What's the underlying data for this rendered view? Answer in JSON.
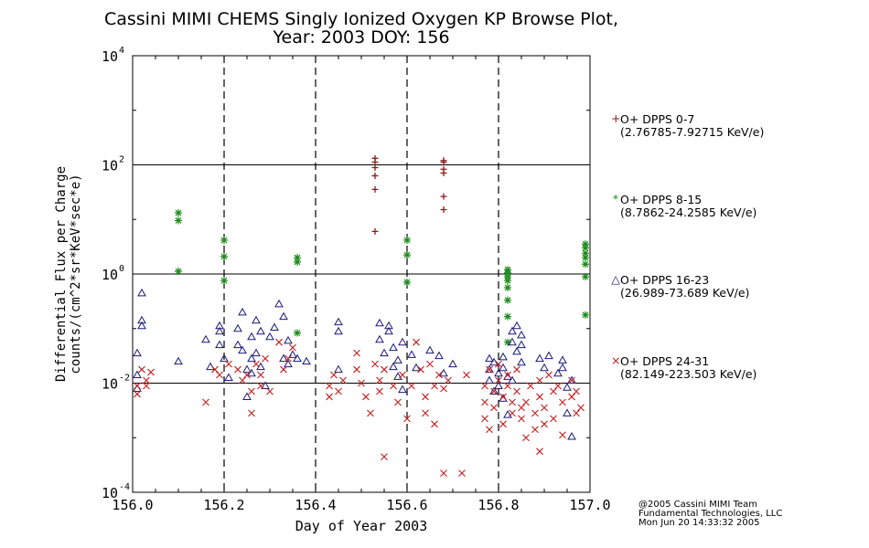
{
  "chart_data": {
    "type": "scatter",
    "title_line1": "Cassini MIMI CHEMS Singly Ionized Oxygen KP Browse Plot,",
    "title_line2": "Year: 2003 DOY: 156",
    "xlabel": "Day of Year 2003",
    "ylabel_line1": "Differential Flux per Charge",
    "ylabel_line2": "counts/(cm^2*sr*KeV*sec*e)",
    "xlim": [
      156.0,
      157.0
    ],
    "ylim_log10": [
      -4,
      4
    ],
    "x_ticks": [
      "156.0",
      "156.2",
      "156.4",
      "156.6",
      "156.8",
      "157.0"
    ],
    "x_tick_values": [
      156.0,
      156.2,
      156.4,
      156.6,
      156.8,
      157.0
    ],
    "y_ticks": [
      {
        "base": "10",
        "exp": "-4",
        "value": -4
      },
      {
        "base": "10",
        "exp": "-2",
        "value": -2
      },
      {
        "base": "10",
        "exp": "0",
        "value": 0
      },
      {
        "base": "10",
        "exp": "2",
        "value": 2
      },
      {
        "base": "10",
        "exp": "4",
        "value": 4
      }
    ],
    "reference_lines_log10": [
      -2,
      0,
      2
    ],
    "dashed_vertical_lines": [
      156.2,
      156.4,
      156.6,
      156.8
    ],
    "series": [
      {
        "name": "O+ DPPS 0-7",
        "range": "(2.76785-7.92715 KeV/e)",
        "marker": "plus",
        "color": "#8b1a1a",
        "points": [
          [
            156.53,
            2.12
          ],
          [
            156.53,
            2.05
          ],
          [
            156.53,
            1.95
          ],
          [
            156.53,
            1.8
          ],
          [
            156.53,
            1.55
          ],
          [
            156.53,
            0.78
          ],
          [
            156.68,
            2.08
          ],
          [
            156.68,
            2.05
          ],
          [
            156.68,
            1.92
          ],
          [
            156.68,
            1.85
          ],
          [
            156.68,
            1.42
          ],
          [
            156.68,
            1.18
          ]
        ]
      },
      {
        "name": "O+ DPPS 8-15",
        "range": "(8.7862-24.2585 KeV/e)",
        "marker": "asterisk",
        "color": "#1a8a1a",
        "points": [
          [
            156.1,
            1.12
          ],
          [
            156.1,
            0.98
          ],
          [
            156.1,
            0.05
          ],
          [
            156.2,
            0.62
          ],
          [
            156.2,
            0.32
          ],
          [
            156.2,
            -0.12
          ],
          [
            156.36,
            0.3
          ],
          [
            156.36,
            0.22
          ],
          [
            156.36,
            -1.08
          ],
          [
            156.6,
            0.62
          ],
          [
            156.6,
            0.35
          ],
          [
            156.6,
            -0.15
          ],
          [
            156.82,
            0.08
          ],
          [
            156.82,
            0.02
          ],
          [
            156.82,
            -0.05
          ],
          [
            156.82,
            -0.12
          ],
          [
            156.82,
            -0.25
          ],
          [
            156.82,
            -0.48
          ],
          [
            156.82,
            -0.78
          ],
          [
            156.82,
            -1.25
          ],
          [
            156.99,
            0.55
          ],
          [
            156.99,
            0.48
          ],
          [
            156.99,
            0.38
          ],
          [
            156.99,
            0.3
          ],
          [
            156.99,
            0.18
          ],
          [
            156.99,
            -0.05
          ],
          [
            156.99,
            -0.75
          ]
        ]
      },
      {
        "name": "O+ DPPS 16-23",
        "range": "(26.989-73.689 KeV/e)",
        "marker": "triangle",
        "color": "#1a1a7a",
        "points": [
          [
            156.02,
            -0.35
          ],
          [
            156.02,
            -0.85
          ],
          [
            156.02,
            -0.95
          ],
          [
            156.01,
            -1.45
          ],
          [
            156.01,
            -1.85
          ],
          [
            156.01,
            -2.1
          ],
          [
            156.1,
            -1.6
          ],
          [
            156.16,
            -1.2
          ],
          [
            156.17,
            -1.7
          ],
          [
            156.19,
            -1.05
          ],
          [
            156.19,
            -1.3
          ],
          [
            156.19,
            -0.95
          ],
          [
            156.2,
            -1.55
          ],
          [
            156.21,
            -1.9
          ],
          [
            156.23,
            -1.0
          ],
          [
            156.23,
            -1.3
          ],
          [
            156.24,
            -0.7
          ],
          [
            156.24,
            -1.4
          ],
          [
            156.25,
            -1.75
          ],
          [
            156.25,
            -2.25
          ],
          [
            156.26,
            -1.15
          ],
          [
            156.26,
            -1.55
          ],
          [
            156.26,
            -1.82
          ],
          [
            156.27,
            -0.85
          ],
          [
            156.27,
            -1.45
          ],
          [
            156.28,
            -1.05
          ],
          [
            156.28,
            -1.7
          ],
          [
            156.29,
            -2.05
          ],
          [
            156.3,
            -1.15
          ],
          [
            156.31,
            -0.98
          ],
          [
            156.32,
            -0.55
          ],
          [
            156.33,
            -0.78
          ],
          [
            156.33,
            -1.55
          ],
          [
            156.34,
            -1.22
          ],
          [
            156.34,
            -1.65
          ],
          [
            156.35,
            -1.48
          ],
          [
            156.36,
            -1.55
          ],
          [
            156.38,
            -1.6
          ],
          [
            156.45,
            -0.88
          ],
          [
            156.45,
            -1.05
          ],
          [
            156.45,
            -1.75
          ],
          [
            156.54,
            -0.9
          ],
          [
            156.54,
            -1.2
          ],
          [
            156.55,
            -1.45
          ],
          [
            156.56,
            -1.05
          ],
          [
            156.56,
            -0.95
          ],
          [
            156.57,
            -1.35
          ],
          [
            156.57,
            -1.7
          ],
          [
            156.58,
            -1.58
          ],
          [
            156.58,
            -1.88
          ],
          [
            156.59,
            -1.25
          ],
          [
            156.59,
            -2.12
          ],
          [
            156.61,
            -1.48
          ],
          [
            156.62,
            -1.72
          ],
          [
            156.65,
            -1.4
          ],
          [
            156.67,
            -1.5
          ],
          [
            156.68,
            -1.82
          ],
          [
            156.7,
            -1.65
          ],
          [
            156.78,
            -1.55
          ],
          [
            156.78,
            -1.75
          ],
          [
            156.78,
            -1.95
          ],
          [
            156.79,
            -2.15
          ],
          [
            156.79,
            -1.62
          ],
          [
            156.8,
            -1.82
          ],
          [
            156.8,
            -2.05
          ],
          [
            156.81,
            -1.52
          ],
          [
            156.81,
            -1.72
          ],
          [
            156.81,
            -2.28
          ],
          [
            156.82,
            -2.58
          ],
          [
            156.82,
            -1.88
          ],
          [
            156.83,
            -1.95
          ],
          [
            156.83,
            -1.05
          ],
          [
            156.83,
            -1.25
          ],
          [
            156.84,
            -0.95
          ],
          [
            156.84,
            -1.42
          ],
          [
            156.85,
            -1.12
          ],
          [
            156.85,
            -1.3
          ],
          [
            156.85,
            -1.62
          ],
          [
            156.89,
            -1.55
          ],
          [
            156.9,
            -1.72
          ],
          [
            156.91,
            -1.5
          ],
          [
            156.93,
            -1.82
          ],
          [
            156.94,
            -1.58
          ],
          [
            156.94,
            -1.72
          ],
          [
            156.95,
            -2.08
          ],
          [
            156.95,
            -2.55
          ],
          [
            156.96,
            -2.98
          ],
          [
            156.96,
            -1.95
          ]
        ]
      },
      {
        "name": "O+ DPPS 24-31",
        "range": "(82.149-223.503 KeV/e)",
        "marker": "x",
        "color": "#c41e1e",
        "points": [
          [
            156.01,
            -2.2
          ],
          [
            156.01,
            -2.05
          ],
          [
            156.02,
            -1.75
          ],
          [
            156.03,
            -1.95
          ],
          [
            156.03,
            -2.05
          ],
          [
            156.04,
            -1.8
          ],
          [
            156.16,
            -2.35
          ],
          [
            156.18,
            -1.75
          ],
          [
            156.19,
            -1.85
          ],
          [
            156.21,
            -1.65
          ],
          [
            156.23,
            -1.75
          ],
          [
            156.24,
            -1.95
          ],
          [
            156.25,
            -1.85
          ],
          [
            156.26,
            -2.15
          ],
          [
            156.26,
            -2.55
          ],
          [
            156.27,
            -1.65
          ],
          [
            156.28,
            -2.05
          ],
          [
            156.28,
            -1.85
          ],
          [
            156.29,
            -1.55
          ],
          [
            156.3,
            -2.15
          ],
          [
            156.32,
            -1.25
          ],
          [
            156.33,
            -1.75
          ],
          [
            156.34,
            -1.55
          ],
          [
            156.35,
            -1.35
          ],
          [
            156.43,
            -2.25
          ],
          [
            156.43,
            -2.05
          ],
          [
            156.44,
            -1.85
          ],
          [
            156.45,
            -2.15
          ],
          [
            156.46,
            -1.95
          ],
          [
            156.49,
            -1.75
          ],
          [
            156.49,
            -1.45
          ],
          [
            156.5,
            -2.0
          ],
          [
            156.51,
            -2.25
          ],
          [
            156.52,
            -2.55
          ],
          [
            156.53,
            -1.65
          ],
          [
            156.54,
            -1.95
          ],
          [
            156.54,
            -2.15
          ],
          [
            156.55,
            -1.75
          ],
          [
            156.55,
            -3.35
          ],
          [
            156.57,
            -2.05
          ],
          [
            156.58,
            -2.35
          ],
          [
            156.59,
            -1.85
          ],
          [
            156.6,
            -2.65
          ],
          [
            156.61,
            -2.05
          ],
          [
            156.62,
            -1.25
          ],
          [
            156.63,
            -1.75
          ],
          [
            156.64,
            -2.25
          ],
          [
            156.64,
            -2.55
          ],
          [
            156.65,
            -1.65
          ],
          [
            156.66,
            -2.05
          ],
          [
            156.66,
            -2.75
          ],
          [
            156.67,
            -1.85
          ],
          [
            156.68,
            -2.1
          ],
          [
            156.68,
            -3.65
          ],
          [
            156.69,
            -1.95
          ],
          [
            156.72,
            -3.65
          ],
          [
            156.73,
            -1.85
          ],
          [
            156.77,
            -2.05
          ],
          [
            156.77,
            -2.35
          ],
          [
            156.77,
            -2.65
          ],
          [
            156.78,
            -2.85
          ],
          [
            156.78,
            -1.75
          ],
          [
            156.79,
            -2.15
          ],
          [
            156.79,
            -2.45
          ],
          [
            156.8,
            -1.65
          ],
          [
            156.8,
            -1.95
          ],
          [
            156.81,
            -2.25
          ],
          [
            156.81,
            -2.75
          ],
          [
            156.82,
            -1.85
          ],
          [
            156.82,
            -2.05
          ],
          [
            156.83,
            -2.35
          ],
          [
            156.83,
            -2.55
          ],
          [
            156.84,
            -1.75
          ],
          [
            156.84,
            -2.15
          ],
          [
            156.85,
            -2.45
          ],
          [
            156.85,
            -2.65
          ],
          [
            156.86,
            -2.35
          ],
          [
            156.86,
            -3.0
          ],
          [
            156.87,
            -2.05
          ],
          [
            156.88,
            -2.55
          ],
          [
            156.88,
            -2.85
          ],
          [
            156.89,
            -2.25
          ],
          [
            156.89,
            -1.95
          ],
          [
            156.9,
            -2.45
          ],
          [
            156.9,
            -2.75
          ],
          [
            156.91,
            -1.85
          ],
          [
            156.92,
            -2.15
          ],
          [
            156.92,
            -2.65
          ],
          [
            156.93,
            -2.05
          ],
          [
            156.94,
            -2.35
          ],
          [
            156.94,
            -2.95
          ],
          [
            156.96,
            -2.25
          ],
          [
            156.96,
            -1.95
          ],
          [
            156.97,
            -2.55
          ],
          [
            156.97,
            -2.15
          ],
          [
            156.98,
            -2.45
          ],
          [
            156.89,
            -3.25
          ]
        ]
      }
    ]
  },
  "credits": {
    "line1": "@2005 Cassini MIMI Team",
    "line2": "Fundamental Technologies, LLC",
    "line3": "Mon Jun 20 14:33:32 2005"
  }
}
